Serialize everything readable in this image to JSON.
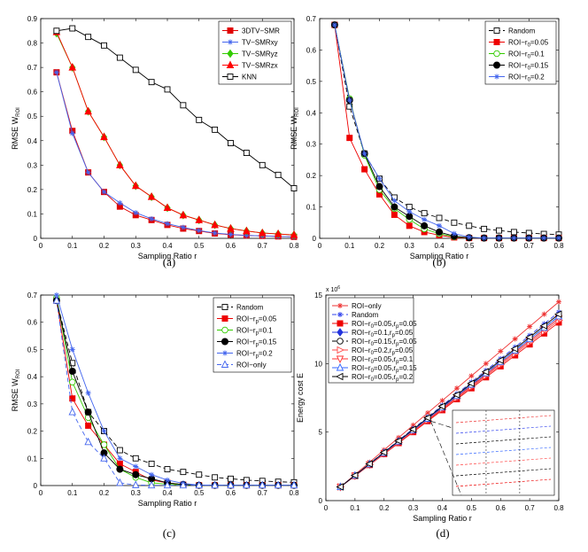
{
  "chart_data": [
    {
      "type": "line",
      "caption": "(a)",
      "xlabel": "Sampling Ratio r",
      "ylabel": "RMSE W",
      "ylabel_sub": "ROI",
      "xlim": [
        0,
        0.8
      ],
      "ylim": [
        0,
        0.9
      ],
      "xticks": [
        0,
        0.1,
        0.2,
        0.3,
        0.4,
        0.5,
        0.6,
        0.7,
        0.8
      ],
      "yticks": [
        0,
        0.1,
        0.2,
        0.3,
        0.4,
        0.5,
        0.6,
        0.7,
        0.8,
        0.9
      ],
      "legend_position": "top-right",
      "x": [
        0.05,
        0.1,
        0.15,
        0.2,
        0.25,
        0.3,
        0.35,
        0.4,
        0.45,
        0.5,
        0.55,
        0.6,
        0.65,
        0.7,
        0.75,
        0.8
      ],
      "series": [
        {
          "name": "3DTV−SMR",
          "color": "#e00000",
          "marker": "square",
          "dash": "",
          "values": [
            0.68,
            0.44,
            0.27,
            0.19,
            0.13,
            0.095,
            0.075,
            0.055,
            0.04,
            0.03,
            0.02,
            0.015,
            0.012,
            0.01,
            0.008,
            0.006
          ]
        },
        {
          "name": "TV−SMRxy",
          "color": "#4466ee",
          "marker": "star",
          "dash": "",
          "values": [
            0.68,
            0.43,
            0.27,
            0.19,
            0.145,
            0.105,
            0.08,
            0.06,
            0.045,
            0.032,
            0.022,
            0.016,
            0.012,
            0.01,
            0.008,
            0.006
          ]
        },
        {
          "name": "TV−SMRyz",
          "color": "#33cc00",
          "marker": "diamond",
          "dash": "",
          "values": [
            0.84,
            0.7,
            0.52,
            0.415,
            0.3,
            0.215,
            0.17,
            0.125,
            0.095,
            0.075,
            0.055,
            0.04,
            0.03,
            0.022,
            0.018,
            0.014
          ]
        },
        {
          "name": "TV−SMRzx",
          "color": "#ff0000",
          "marker": "triangle",
          "dash": "",
          "values": [
            0.845,
            0.7,
            0.52,
            0.415,
            0.3,
            0.215,
            0.17,
            0.125,
            0.095,
            0.075,
            0.055,
            0.04,
            0.03,
            0.022,
            0.018,
            0.014
          ]
        },
        {
          "name": "KNN",
          "color": "#000000",
          "marker": "osquare",
          "dash": "",
          "values": [
            0.85,
            0.86,
            0.825,
            0.79,
            0.74,
            0.69,
            0.64,
            0.61,
            0.545,
            0.485,
            0.445,
            0.39,
            0.35,
            0.3,
            0.26,
            0.205
          ]
        }
      ]
    },
    {
      "type": "line",
      "caption": "(b)",
      "xlabel": "Sampling Ratio r",
      "ylabel": "RMSE W",
      "ylabel_sub": "ROI",
      "xlim": [
        0,
        0.8
      ],
      "ylim": [
        0,
        0.7
      ],
      "xticks": [
        0,
        0.1,
        0.2,
        0.3,
        0.4,
        0.5,
        0.6,
        0.7,
        0.8
      ],
      "yticks": [
        0,
        0.1,
        0.2,
        0.3,
        0.4,
        0.5,
        0.6,
        0.7
      ],
      "legend_position": "top-right",
      "x": [
        0.05,
        0.1,
        0.15,
        0.2,
        0.25,
        0.3,
        0.35,
        0.4,
        0.45,
        0.5,
        0.55,
        0.6,
        0.65,
        0.7,
        0.75,
        0.8
      ],
      "series": [
        {
          "name": "Random",
          "color": "#000000",
          "marker": "osquare",
          "dash": "5,3",
          "values": [
            0.68,
            0.42,
            0.27,
            0.19,
            0.13,
            0.1,
            0.08,
            0.065,
            0.05,
            0.04,
            0.03,
            0.025,
            0.02,
            0.017,
            0.014,
            0.012
          ]
        },
        {
          "name": "ROI−r0=0.05",
          "color": "#ee0000",
          "marker": "square",
          "dash": "",
          "values": [
            0.68,
            0.32,
            0.22,
            0.14,
            0.075,
            0.04,
            0.02,
            0.01,
            0.003,
            0.001,
            0.001,
            0.001,
            0.001,
            0.001,
            0.001,
            0.001
          ]
        },
        {
          "name": "ROI−r0=0.1",
          "color": "#33cc00",
          "marker": "ocircle",
          "dash": "",
          "values": [
            0.68,
            0.445,
            0.265,
            0.155,
            0.095,
            0.06,
            0.03,
            0.015,
            0.005,
            0.002,
            0.001,
            0.001,
            0.001,
            0.001,
            0.001,
            0.001
          ]
        },
        {
          "name": "ROI−r0=0.15",
          "color": "#000000",
          "marker": "circle",
          "dash": "",
          "values": [
            0.68,
            0.44,
            0.27,
            0.165,
            0.1,
            0.07,
            0.04,
            0.02,
            0.007,
            0.002,
            0.001,
            0.001,
            0.001,
            0.001,
            0.001,
            0.001
          ]
        },
        {
          "name": "ROI−r0=0.2",
          "color": "#4466ee",
          "marker": "star",
          "dash": "",
          "values": [
            0.68,
            0.44,
            0.27,
            0.19,
            0.12,
            0.085,
            0.06,
            0.04,
            0.015,
            0.004,
            0.001,
            0.001,
            0.001,
            0.001,
            0.001,
            0.001
          ]
        }
      ]
    },
    {
      "type": "line",
      "caption": "(c)",
      "xlabel": "Sampling Ratio r",
      "ylabel": "RMSE W",
      "ylabel_sub": "ROI",
      "xlim": [
        0,
        0.8
      ],
      "ylim": [
        0,
        0.7
      ],
      "xticks": [
        0,
        0.1,
        0.2,
        0.3,
        0.4,
        0.5,
        0.6,
        0.7,
        0.8
      ],
      "yticks": [
        0,
        0.1,
        0.2,
        0.3,
        0.4,
        0.5,
        0.6,
        0.7
      ],
      "legend_position": "top-right",
      "x": [
        0.05,
        0.1,
        0.15,
        0.2,
        0.25,
        0.3,
        0.35,
        0.4,
        0.45,
        0.5,
        0.55,
        0.6,
        0.65,
        0.7,
        0.75,
        0.8
      ],
      "series": [
        {
          "name": "Random",
          "color": "#000000",
          "marker": "osquare",
          "dash": "5,3",
          "values": [
            0.68,
            0.45,
            0.27,
            0.2,
            0.13,
            0.1,
            0.08,
            0.06,
            0.05,
            0.04,
            0.03,
            0.025,
            0.02,
            0.017,
            0.014,
            0.012
          ]
        },
        {
          "name": "ROI−rp=0.05",
          "color": "#ee0000",
          "marker": "square",
          "dash": "",
          "values": [
            0.68,
            0.32,
            0.22,
            0.15,
            0.08,
            0.05,
            0.02,
            0.01,
            0.003,
            0.001,
            0.001,
            0.001,
            0.001,
            0.001,
            0.001,
            0.001
          ]
        },
        {
          "name": "ROI−rp=0.1",
          "color": "#33cc00",
          "marker": "ocircle",
          "dash": "",
          "values": [
            0.69,
            0.38,
            0.25,
            0.15,
            0.06,
            0.03,
            0.01,
            0.005,
            0.002,
            0.001,
            0.001,
            0.001,
            0.001,
            0.001,
            0.001,
            0.001
          ]
        },
        {
          "name": "ROI−rp=0.15",
          "color": "#000000",
          "marker": "circle",
          "dash": "",
          "values": [
            0.68,
            0.42,
            0.27,
            0.12,
            0.06,
            0.04,
            0.025,
            0.01,
            0.004,
            0.001,
            0.001,
            0.001,
            0.001,
            0.001,
            0.001,
            0.001
          ]
        },
        {
          "name": "ROI−rp=0.2",
          "color": "#4466ee",
          "marker": "star",
          "dash": "",
          "values": [
            0.7,
            0.5,
            0.34,
            0.2,
            0.1,
            0.07,
            0.04,
            0.02,
            0.008,
            0.002,
            0.001,
            0.001,
            0.001,
            0.001,
            0.001,
            0.001
          ]
        },
        {
          "name": "ROI−only",
          "color": "#4466ee",
          "marker": "otriangle",
          "dash": "5,3",
          "values": [
            0.68,
            0.27,
            0.16,
            0.1,
            0.01,
            0.002,
            0.001,
            0.001,
            0.001,
            0.001,
            0.001,
            0.001,
            0.001,
            0.001,
            0.001,
            0.001
          ]
        }
      ]
    },
    {
      "type": "line",
      "caption": "(d)",
      "xlabel": "Sampling Ratio r",
      "ylabel": "Energy cost E",
      "ylabel_sub": "",
      "scale_note": "x 10",
      "scale_exp": "6",
      "xlim": [
        0,
        0.8
      ],
      "ylim": [
        0,
        15
      ],
      "xticks": [
        0,
        0.1,
        0.2,
        0.3,
        0.4,
        0.5,
        0.6,
        0.7,
        0.8
      ],
      "yticks": [
        0,
        5,
        10,
        15
      ],
      "legend_position": "top-left",
      "x": [
        0.05,
        0.1,
        0.15,
        0.2,
        0.25,
        0.3,
        0.35,
        0.4,
        0.45,
        0.5,
        0.55,
        0.6,
        0.65,
        0.7,
        0.75,
        0.8
      ],
      "series": [
        {
          "name": "ROI−only",
          "color": "#ee3333",
          "marker": "star",
          "dash": "",
          "values": [
            1.0,
            1.9,
            2.8,
            3.7,
            4.6,
            5.5,
            6.4,
            7.3,
            8.2,
            9.1,
            10.0,
            10.9,
            11.8,
            12.7,
            13.6,
            14.5
          ]
        },
        {
          "name": "Random",
          "color": "#3344ee",
          "marker": "star",
          "dash": "5,3",
          "values": [
            1.0,
            1.85,
            2.7,
            3.55,
            4.4,
            5.25,
            6.1,
            6.95,
            7.8,
            8.65,
            9.5,
            10.35,
            11.2,
            12.05,
            12.9,
            13.75
          ]
        },
        {
          "name": "ROI−r0=0.05,rp=0.05",
          "color": "#ee0000",
          "marker": "square",
          "dash": "",
          "values": [
            1.0,
            1.8,
            2.6,
            3.4,
            4.2,
            5.0,
            5.8,
            6.6,
            7.4,
            8.2,
            9.0,
            9.8,
            10.6,
            11.4,
            12.2,
            13.0
          ]
        },
        {
          "name": "ROI−r0=0.1,rp=0.05",
          "color": "#2233dd",
          "marker": "diamond",
          "dash": "",
          "values": [
            1.0,
            1.82,
            2.64,
            3.46,
            4.28,
            5.1,
            5.92,
            6.74,
            7.56,
            8.38,
            9.2,
            10.02,
            10.84,
            11.66,
            12.48,
            13.3
          ]
        },
        {
          "name": "ROI−r0=0.15,rp=0.05",
          "color": "#000000",
          "marker": "ocircle",
          "dash": "5,3",
          "values": [
            1.0,
            1.83,
            2.66,
            3.49,
            4.32,
            5.15,
            5.98,
            6.81,
            7.64,
            8.47,
            9.3,
            10.13,
            10.96,
            11.79,
            12.62,
            13.45
          ]
        },
        {
          "name": "ROI−r0=0.2,rp=0.05",
          "color": "#ff4444",
          "marker": "otriright",
          "dash": "",
          "values": [
            1.0,
            1.81,
            2.62,
            3.43,
            4.24,
            5.05,
            5.86,
            6.67,
            7.48,
            8.29,
            9.1,
            9.91,
            10.72,
            11.53,
            12.34,
            13.15
          ]
        },
        {
          "name": "ROI−r0=0.05,rp=0.1",
          "color": "#ff3333",
          "marker": "otridown",
          "dash": "",
          "values": [
            1.0,
            1.82,
            2.64,
            3.46,
            4.28,
            5.1,
            5.92,
            6.74,
            7.56,
            8.38,
            9.2,
            10.02,
            10.84,
            11.66,
            12.48,
            13.3
          ]
        },
        {
          "name": "ROI−r0=0.05,rp=0.15",
          "color": "#3366ff",
          "marker": "otriangle",
          "dash": "",
          "values": [
            1.0,
            1.83,
            2.66,
            3.49,
            4.32,
            5.15,
            5.98,
            6.81,
            7.64,
            8.47,
            9.3,
            10.13,
            10.96,
            11.79,
            12.62,
            13.45
          ]
        },
        {
          "name": "ROI−r0=0.05,rp=0.2",
          "color": "#000000",
          "marker": "otrileft",
          "dash": "",
          "values": [
            1.0,
            1.84,
            2.68,
            3.52,
            4.36,
            5.2,
            6.04,
            6.88,
            7.72,
            8.56,
            9.4,
            10.24,
            11.08,
            11.92,
            12.76,
            13.6
          ]
        }
      ]
    }
  ]
}
